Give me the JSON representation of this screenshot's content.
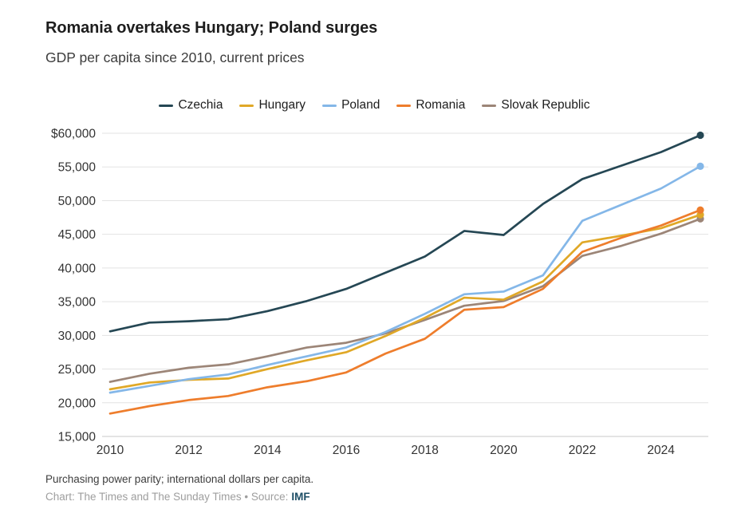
{
  "header": {
    "title": "Romania overtakes Hungary; Poland surges",
    "subtitle": "GDP per capita since 2010, current prices"
  },
  "footer": {
    "note": "Purchasing power parity; international dollars per capita.",
    "credit_prefix": "Chart: The Times and The Sunday Times • Source:",
    "source_label": "IMF"
  },
  "colors": {
    "title": "#1d1d1d",
    "subtitle": "#3d3d3d",
    "tick_text": "#333333",
    "grid": "#e3e3e3",
    "axis_line": "#c8c8c8",
    "note_text": "#3d3d3d",
    "credit_text": "#9e9e9e",
    "source_link": "#1d4e66"
  },
  "chart_data": {
    "type": "line",
    "title": "Romania overtakes Hungary; Poland surges",
    "subtitle": "GDP per capita since 2010, current prices",
    "unit_note": "Purchasing power parity; international dollars per capita",
    "legend_position": "top",
    "grid": true,
    "end_dots": true,
    "xlim": [
      2010,
      2025
    ],
    "ylim": [
      15000,
      60000
    ],
    "x": [
      2010,
      2011,
      2012,
      2013,
      2014,
      2015,
      2016,
      2017,
      2018,
      2019,
      2020,
      2021,
      2022,
      2023,
      2024,
      2025
    ],
    "x_ticks": [
      2010,
      2012,
      2014,
      2016,
      2018,
      2020,
      2022,
      2024
    ],
    "x_tick_labels": [
      "2010",
      "2012",
      "2014",
      "2016",
      "2018",
      "2020",
      "2022",
      "2024"
    ],
    "y_ticks": [
      15000,
      20000,
      25000,
      30000,
      35000,
      40000,
      45000,
      50000,
      55000,
      60000
    ],
    "y_tick_labels": [
      "15,000",
      "20,000",
      "25,000",
      "30,000",
      "35,000",
      "40,000",
      "45,000",
      "50,000",
      "55,000",
      "$60,000"
    ],
    "series": [
      {
        "name": "Czechia",
        "color": "#254754",
        "values": [
          30600,
          31900,
          32100,
          32400,
          33600,
          35100,
          36900,
          39300,
          41700,
          45500,
          44900,
          49500,
          53200,
          55200,
          57200,
          59700
        ]
      },
      {
        "name": "Hungary",
        "color": "#e0a827",
        "values": [
          22000,
          23000,
          23400,
          23600,
          25000,
          26300,
          27500,
          29900,
          32600,
          35600,
          35300,
          38000,
          43800,
          44800,
          45900,
          47900
        ]
      },
      {
        "name": "Poland",
        "color": "#84b7e8",
        "values": [
          21500,
          22500,
          23500,
          24200,
          25600,
          26900,
          28200,
          30500,
          33200,
          36100,
          36500,
          38900,
          47000,
          49400,
          51800,
          55100
        ]
      },
      {
        "name": "Romania",
        "color": "#ee7d2c",
        "values": [
          18400,
          19500,
          20400,
          21000,
          22300,
          23200,
          24500,
          27300,
          29500,
          33800,
          34200,
          36900,
          42400,
          44500,
          46300,
          48600
        ]
      },
      {
        "name": "Slovak Republic",
        "color": "#9c8577",
        "values": [
          23100,
          24300,
          25200,
          25700,
          26900,
          28200,
          28900,
          30300,
          32300,
          34400,
          35100,
          37300,
          41800,
          43300,
          45100,
          47300
        ]
      }
    ]
  }
}
